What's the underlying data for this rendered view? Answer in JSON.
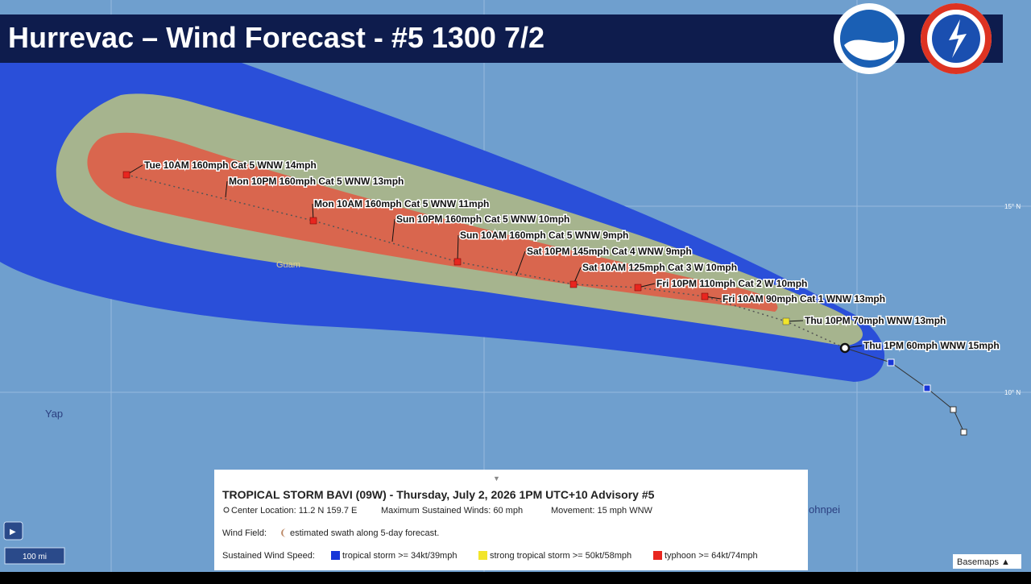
{
  "header": {
    "title": "Hurrevac – Wind Forecast - #5 1300 7/2"
  },
  "forecast_points": [
    {
      "label": "Tue 10AM 160mph Cat 5 WNW 14mph"
    },
    {
      "label": "Mon 10PM 160mph Cat 5 WNW 13mph"
    },
    {
      "label": "Mon 10AM 160mph Cat 5 WNW 11mph"
    },
    {
      "label": "Sun 10PM 160mph Cat 5 WNW 10mph"
    },
    {
      "label": "Sun 10AM 160mph Cat 5 WNW 9mph"
    },
    {
      "label": "Sat 10PM 145mph Cat 4 WNW 9mph"
    },
    {
      "label": "Sat 10AM 125mph Cat 3 W 10mph"
    },
    {
      "label": "Fri 10PM 110mph Cat 2 W 10mph"
    },
    {
      "label": "Fri 10AM 90mph Cat 1 WNW 13mph"
    },
    {
      "label": "Thu 10PM 70mph WNW 13mph"
    },
    {
      "label": "Thu 1PM 60mph WNW 15mph"
    }
  ],
  "places": {
    "guam": "Guam",
    "yap": "Yap",
    "pohnpei": "ohnpei"
  },
  "grid_labels": {
    "lat15": "15° N",
    "lat10": "10° N"
  },
  "panel": {
    "title": "TROPICAL STORM BAVI (09W)  -  Thursday, July 2, 2026 1PM UTC+10  Advisory #5",
    "center": "Center Location: 11.2 N 159.7 E",
    "winds": "Maximum Sustained Winds: 60 mph",
    "movement": "Movement: 15 mph WNW",
    "wind_field_label": "Wind Field:",
    "wind_field_text": "estimated swath along 5-day forecast.",
    "speed_label": "Sustained Wind Speed:",
    "legend": [
      {
        "name": "tropical storm >= 34kt/39mph",
        "color": "#1736d8"
      },
      {
        "name": "strong tropical storm >= 50kt/58mph",
        "color": "#f2e52a"
      },
      {
        "name": "typhoon >= 64kt/74mph",
        "color": "#e8261f"
      }
    ]
  },
  "scale": "100 mi",
  "basemaps": "Basemaps ▲"
}
